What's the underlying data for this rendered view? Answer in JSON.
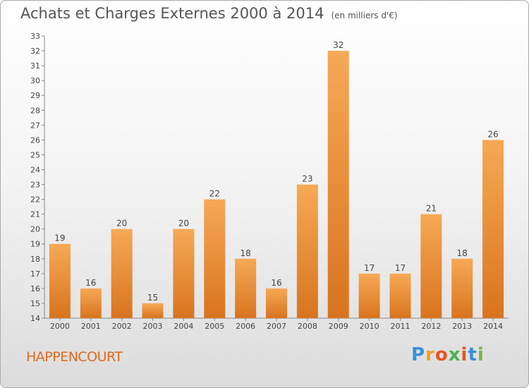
{
  "title": "Achats et Charges Externes 2000 à 2014",
  "subtitle": "(en milliers d'€)",
  "commune": "HAPPENCOURT",
  "logo": {
    "letters": [
      "P",
      "r",
      "o",
      "x",
      "i",
      "t",
      "i"
    ],
    "colors": [
      "#3a8fd9",
      "#f0a020",
      "#e8531e",
      "#4caf50",
      "#e8531e",
      "#3a8fd9",
      "#7cb342"
    ]
  },
  "chart_data": {
    "type": "bar",
    "categories": [
      "2000",
      "2001",
      "2002",
      "2003",
      "2004",
      "2005",
      "2006",
      "2007",
      "2008",
      "2009",
      "2010",
      "2011",
      "2012",
      "2013",
      "2014"
    ],
    "values": [
      19,
      16,
      20,
      15,
      20,
      22,
      18,
      16,
      23,
      32,
      17,
      17,
      21,
      18,
      26
    ],
    "ylim": [
      14,
      33
    ],
    "yticks": [
      14,
      15,
      16,
      17,
      18,
      19,
      20,
      21,
      22,
      23,
      24,
      25,
      26,
      27,
      28,
      29,
      30,
      31,
      32,
      33
    ],
    "grid": false,
    "bar_color_top": "#f6a955",
    "bar_color_bottom": "#d9741e",
    "show_data_labels": true
  }
}
